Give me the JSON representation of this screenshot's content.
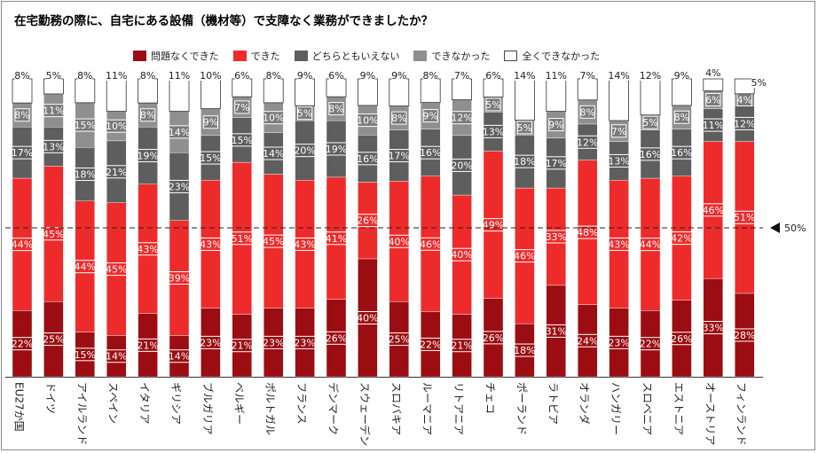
{
  "title": "在宅勤務の際に、自宅にある設備（機材等）で支障なく業務ができましたか？",
  "legend": [
    {
      "label": "問題なくできた",
      "color": "#9b0d12"
    },
    {
      "label": "できた",
      "color": "#ee2b2b"
    },
    {
      "label": "どちらともいえない",
      "color": "#5e5e5e"
    },
    {
      "label": "できなかった",
      "color": "#8f8f8f"
    },
    {
      "label": "全くできなかった",
      "color": "#ffffff"
    }
  ],
  "reference_line": {
    "value": 50,
    "label": "50%"
  },
  "chart_data": {
    "type": "bar",
    "stacked": true,
    "ylim": [
      0,
      100
    ],
    "categories": [
      "EU27か国",
      "ドイツ",
      "アイルランド",
      "スペイン",
      "イタリア",
      "ギリシア",
      "ブルガリア",
      "ベルギー",
      "ポルトガル",
      "フランス",
      "デンマーク",
      "スウェーデン",
      "スロバキア",
      "ルーマニア",
      "リトアニア",
      "チェコ",
      "ポーランド",
      "ラトビア",
      "オランダ",
      "ハンガリー",
      "スロベニア",
      "エストニア",
      "オーストリア",
      "フィンランド"
    ],
    "series": [
      {
        "name": "問題なくできた",
        "values": [
          22,
          25,
          15,
          14,
          21,
          14,
          23,
          21,
          23,
          23,
          26,
          40,
          25,
          22,
          21,
          26,
          18,
          31,
          24,
          23,
          22,
          26,
          33,
          28
        ]
      },
      {
        "name": "できた",
        "values": [
          44,
          45,
          44,
          45,
          43,
          39,
          43,
          51,
          45,
          43,
          41,
          26,
          40,
          46,
          40,
          49,
          46,
          33,
          48,
          43,
          44,
          42,
          46,
          51
        ]
      },
      {
        "name": "どちらともいえない",
        "values": [
          17,
          13,
          18,
          21,
          19,
          23,
          15,
          15,
          14,
          20,
          19,
          16,
          17,
          16,
          20,
          13,
          18,
          17,
          12,
          13,
          16,
          16,
          11,
          12
        ]
      },
      {
        "name": "できなかった",
        "values": [
          8,
          11,
          15,
          10,
          8,
          14,
          9,
          7,
          10,
          5,
          8,
          10,
          8,
          9,
          12,
          5,
          5,
          9,
          8,
          7,
          5,
          8,
          6,
          4
        ]
      },
      {
        "name": "全くできなかった",
        "values": [
          8,
          5,
          8,
          11,
          8,
          11,
          10,
          6,
          8,
          9,
          6,
          9,
          9,
          8,
          7,
          6,
          14,
          11,
          7,
          14,
          12,
          9,
          4,
          5
        ]
      }
    ]
  }
}
